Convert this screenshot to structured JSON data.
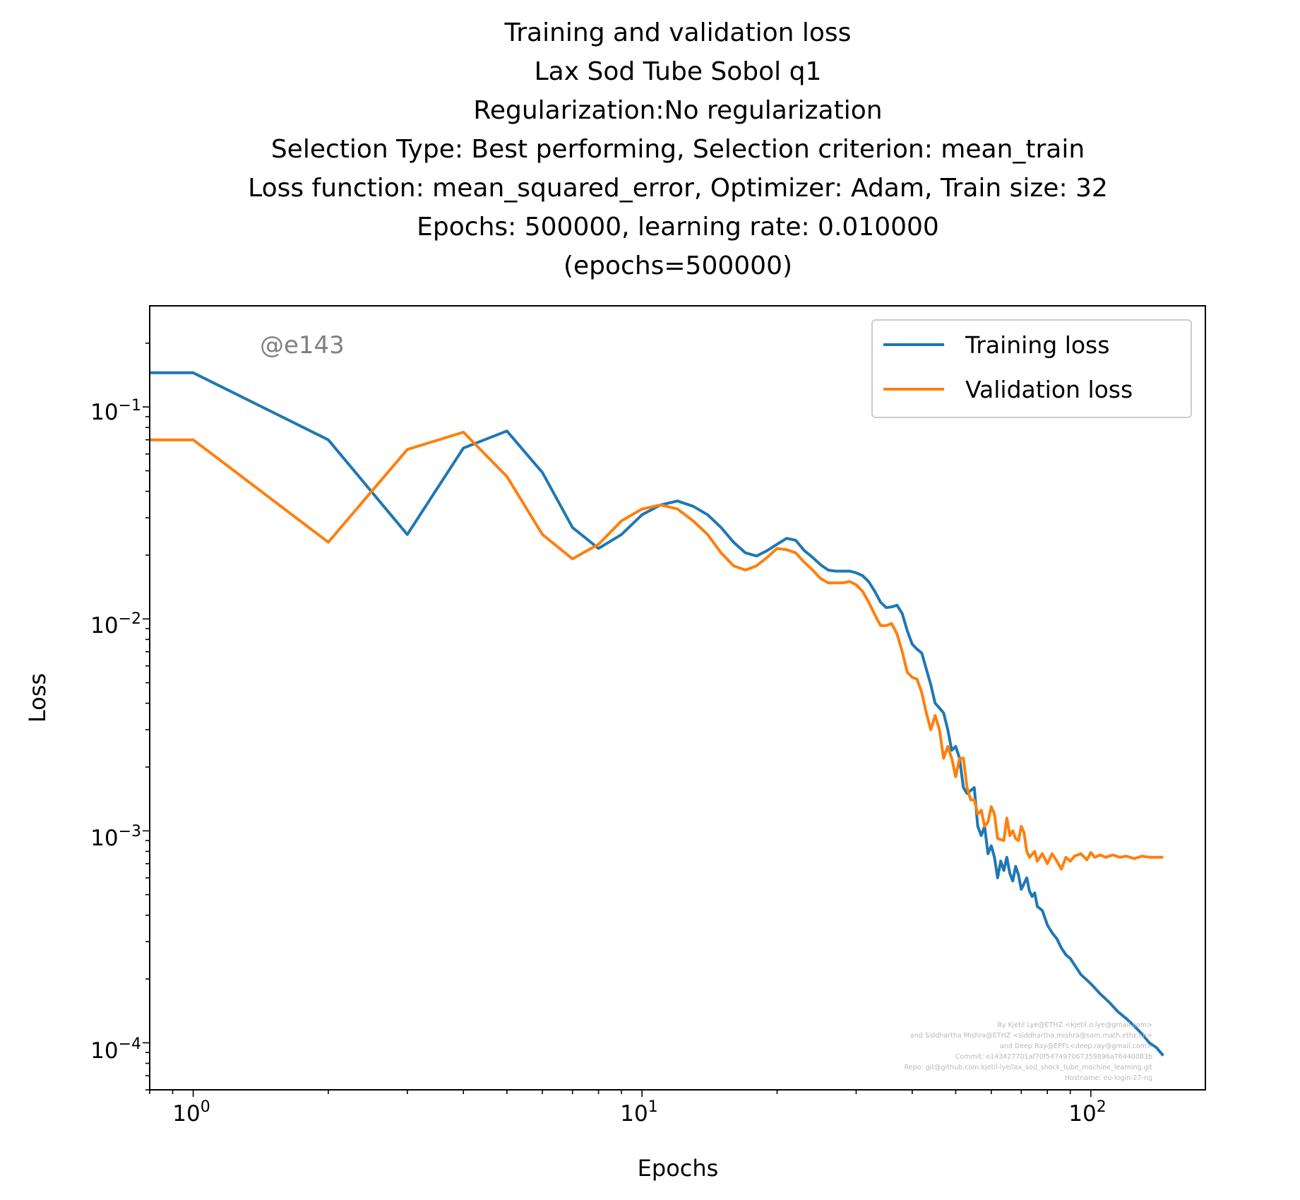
{
  "chart_data": {
    "type": "line",
    "title_lines": [
      "Training and validation loss",
      "Lax Sod Tube Sobol q1",
      "Regularization:No regularization",
      "Selection Type: Best performing, Selection criterion: mean_train",
      "Loss function: mean_squared_error, Optimizer: Adam, Train size: 32",
      "Epochs: 500000, learning rate: 0.010000",
      "(epochs=500000)"
    ],
    "xlabel": "Epochs",
    "ylabel": "Loss",
    "xscale": "log",
    "yscale": "log",
    "xlim": [
      0.8,
      180
    ],
    "ylim": [
      6e-05,
      0.3
    ],
    "x_ticks": [
      {
        "base": "10",
        "exp": "0",
        "value": 1
      },
      {
        "base": "10",
        "exp": "1",
        "value": 10
      },
      {
        "base": "10",
        "exp": "2",
        "value": 100
      }
    ],
    "y_ticks": [
      {
        "base": "10",
        "exp": "−1",
        "value": 0.1
      },
      {
        "base": "10",
        "exp": "−2",
        "value": 0.01
      },
      {
        "base": "10",
        "exp": "−3",
        "value": 0.001
      },
      {
        "base": "10",
        "exp": "−4",
        "value": 0.0001
      }
    ],
    "grid": false,
    "legend_position": "upper-right",
    "series": [
      {
        "name": "Training loss",
        "color": "#1f77b4",
        "points": [
          [
            0.8,
            0.145
          ],
          [
            1,
            0.145
          ],
          [
            2,
            0.07
          ],
          [
            3,
            0.025
          ],
          [
            4,
            0.064
          ],
          [
            5,
            0.077
          ],
          [
            6,
            0.049
          ],
          [
            7,
            0.027
          ],
          [
            8,
            0.0215
          ],
          [
            9,
            0.025
          ],
          [
            10,
            0.031
          ],
          [
            11,
            0.0345
          ],
          [
            12,
            0.036
          ],
          [
            13,
            0.034
          ],
          [
            14,
            0.031
          ],
          [
            15,
            0.027
          ],
          [
            16,
            0.023
          ],
          [
            17,
            0.0205
          ],
          [
            18,
            0.0198
          ],
          [
            19,
            0.021
          ],
          [
            20,
            0.0225
          ],
          [
            21,
            0.024
          ],
          [
            22,
            0.0235
          ],
          [
            23,
            0.021
          ],
          [
            24,
            0.0195
          ],
          [
            25,
            0.018
          ],
          [
            26,
            0.017
          ],
          [
            27,
            0.0168
          ],
          [
            28,
            0.0168
          ],
          [
            29,
            0.0168
          ],
          [
            30,
            0.0165
          ],
          [
            31,
            0.016
          ],
          [
            32,
            0.015
          ],
          [
            33,
            0.0135
          ],
          [
            34,
            0.012
          ],
          [
            35,
            0.0113
          ],
          [
            36,
            0.0114
          ],
          [
            37,
            0.0116
          ],
          [
            38,
            0.0106
          ],
          [
            39,
            0.0088
          ],
          [
            40,
            0.0076
          ],
          [
            41,
            0.0072
          ],
          [
            42,
            0.0069
          ],
          [
            43,
            0.0058
          ],
          [
            44,
            0.0049
          ],
          [
            45,
            0.004
          ],
          [
            46,
            0.0038
          ],
          [
            47,
            0.0036
          ],
          [
            48,
            0.003
          ],
          [
            49,
            0.0024
          ],
          [
            50,
            0.0025
          ],
          [
            51,
            0.0022
          ],
          [
            52,
            0.0016
          ],
          [
            53,
            0.0015
          ],
          [
            55,
            0.0016
          ],
          [
            56,
            0.00105
          ],
          [
            57,
            0.00095
          ],
          [
            58,
            0.00105
          ],
          [
            59,
            0.00078
          ],
          [
            60,
            0.00085
          ],
          [
            61,
            0.00075
          ],
          [
            62,
            0.0006
          ],
          [
            63,
            0.00072
          ],
          [
            64,
            0.00065
          ],
          [
            65,
            0.00075
          ],
          [
            66,
            0.00063
          ],
          [
            67,
            0.00058
          ],
          [
            68,
            0.00068
          ],
          [
            69,
            0.00062
          ],
          [
            70,
            0.00053
          ],
          [
            72,
            0.0006
          ],
          [
            73,
            0.00052
          ],
          [
            74,
            0.00049
          ],
          [
            75,
            0.00051
          ],
          [
            76,
            0.00044
          ],
          [
            78,
            0.00042
          ],
          [
            80,
            0.00036
          ],
          [
            82,
            0.00033
          ],
          [
            84,
            0.00031
          ],
          [
            86,
            0.00028
          ],
          [
            88,
            0.00026
          ],
          [
            90,
            0.00025
          ],
          [
            95,
            0.00021
          ],
          [
            100,
            0.00019
          ],
          [
            105,
            0.00017
          ],
          [
            110,
            0.000155
          ],
          [
            115,
            0.00014
          ],
          [
            120,
            0.00013
          ],
          [
            125,
            0.00012
          ],
          [
            130,
            0.00011
          ],
          [
            135,
            0.0001
          ],
          [
            140,
            9.5e-05
          ],
          [
            145,
            8.7e-05
          ]
        ]
      },
      {
        "name": "Validation loss",
        "color": "#ff7f0e",
        "points": [
          [
            0.8,
            0.07
          ],
          [
            1,
            0.07
          ],
          [
            2,
            0.023
          ],
          [
            3,
            0.063
          ],
          [
            4,
            0.076
          ],
          [
            5,
            0.047
          ],
          [
            6,
            0.025
          ],
          [
            7,
            0.0192
          ],
          [
            8,
            0.0225
          ],
          [
            9,
            0.029
          ],
          [
            10,
            0.033
          ],
          [
            11,
            0.0345
          ],
          [
            12,
            0.033
          ],
          [
            13,
            0.029
          ],
          [
            14,
            0.025
          ],
          [
            15,
            0.0205
          ],
          [
            16,
            0.0178
          ],
          [
            17,
            0.017
          ],
          [
            18,
            0.0178
          ],
          [
            19,
            0.0195
          ],
          [
            20,
            0.0215
          ],
          [
            21,
            0.0212
          ],
          [
            22,
            0.0205
          ],
          [
            23,
            0.0185
          ],
          [
            24,
            0.017
          ],
          [
            25,
            0.0155
          ],
          [
            26,
            0.0148
          ],
          [
            27,
            0.0148
          ],
          [
            28,
            0.0148
          ],
          [
            29,
            0.015
          ],
          [
            30,
            0.0145
          ],
          [
            31,
            0.0135
          ],
          [
            32,
            0.012
          ],
          [
            33,
            0.0105
          ],
          [
            34,
            0.0093
          ],
          [
            35,
            0.0093
          ],
          [
            36,
            0.0095
          ],
          [
            37,
            0.0085
          ],
          [
            38,
            0.007
          ],
          [
            39,
            0.0056
          ],
          [
            40,
            0.0053
          ],
          [
            41,
            0.0052
          ],
          [
            42,
            0.0045
          ],
          [
            43,
            0.0036
          ],
          [
            44,
            0.003
          ],
          [
            45,
            0.0035
          ],
          [
            46,
            0.003
          ],
          [
            47,
            0.0022
          ],
          [
            48,
            0.0025
          ],
          [
            49,
            0.0022
          ],
          [
            50,
            0.0018
          ],
          [
            51,
            0.0022
          ],
          [
            52,
            0.0022
          ],
          [
            53,
            0.0016
          ],
          [
            54,
            0.0014
          ],
          [
            55,
            0.0014
          ],
          [
            56,
            0.0012
          ],
          [
            57,
            0.00125
          ],
          [
            58,
            0.00105
          ],
          [
            59,
            0.0011
          ],
          [
            60,
            0.0013
          ],
          [
            61,
            0.0012
          ],
          [
            62,
            0.00092
          ],
          [
            64,
            0.0009
          ],
          [
            65,
            0.00115
          ],
          [
            66,
            0.00095
          ],
          [
            67,
            0.001
          ],
          [
            68,
            0.00092
          ],
          [
            69,
            0.0009
          ],
          [
            70,
            0.00105
          ],
          [
            71,
            0.00098
          ],
          [
            72,
            0.0008
          ],
          [
            73,
            0.00075
          ],
          [
            75,
            0.0008
          ],
          [
            76,
            0.00072
          ],
          [
            78,
            0.00078
          ],
          [
            80,
            0.0007
          ],
          [
            82,
            0.00078
          ],
          [
            84,
            0.00072
          ],
          [
            86,
            0.00066
          ],
          [
            88,
            0.00075
          ],
          [
            90,
            0.00072
          ],
          [
            92,
            0.00076
          ],
          [
            95,
            0.00078
          ],
          [
            98,
            0.00073
          ],
          [
            100,
            0.00079
          ],
          [
            102,
            0.00075
          ],
          [
            105,
            0.00077
          ],
          [
            108,
            0.00075
          ],
          [
            112,
            0.00077
          ],
          [
            116,
            0.00075
          ],
          [
            120,
            0.00076
          ],
          [
            125,
            0.00074
          ],
          [
            130,
            0.00076
          ],
          [
            135,
            0.00075
          ],
          [
            140,
            0.00075
          ],
          [
            145,
            0.00075
          ]
        ]
      }
    ],
    "annotation": "@e143",
    "credits": [
      "By Kjetil Lye@ETHZ <kjetil.o.lye@gmail.com>",
      "and Siddhartha Mishra@ETHZ <siddhartha.mishra@sam.math.ethz.ch>",
      "and Deep Ray@EPFL<deep.ray@gmail.com>",
      "Commit: e143427701af70f547497067359896a76440083b",
      "Repo: git@github.com:kjetil-lye/lax_sod_shock_tube_machine_learning.git",
      "Hostname: eu-login-27-ng"
    ]
  }
}
